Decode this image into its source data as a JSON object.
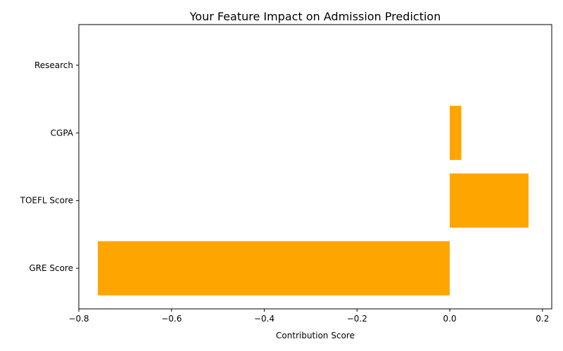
{
  "chart_data": {
    "type": "bar",
    "orientation": "horizontal",
    "title": "Your Feature Impact on Admission Prediction",
    "xlabel": "Contribution Score",
    "ylabel": "",
    "categories": [
      "GRE Score",
      "TOEFL Score",
      "CGPA",
      "Research"
    ],
    "values": [
      -0.759,
      0.17,
      0.025,
      0.0
    ],
    "xlim": [
      -0.8,
      0.22
    ],
    "xticks": [
      -0.8,
      -0.6,
      -0.4,
      -0.2,
      0.0,
      0.2
    ],
    "xtick_labels": [
      "−0.8",
      "−0.6",
      "−0.4",
      "−0.2",
      "0.0",
      "0.2"
    ],
    "grid": false,
    "legend": "none",
    "bar_color": "#ffa500"
  }
}
